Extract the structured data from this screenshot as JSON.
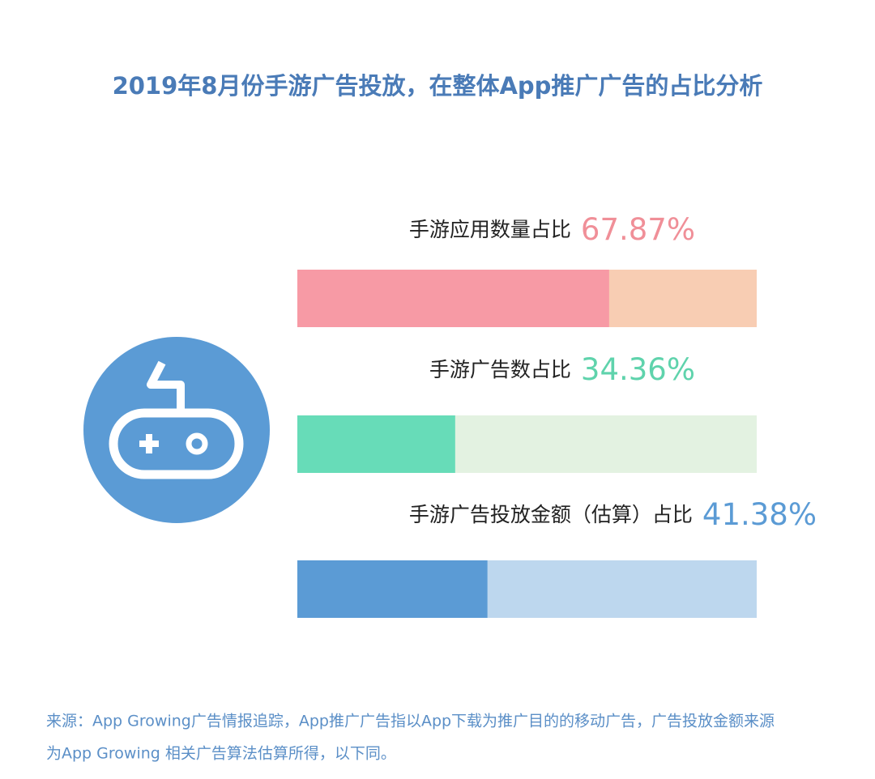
{
  "chart_data": {
    "type": "bar",
    "orientation": "horizontal",
    "title": "2019年8月份手游广告投放，在整体App推广广告的占比分析",
    "categories": [
      "手游应用数量占比",
      "手游广告数占比",
      "手游广告投放金额（估算）占比"
    ],
    "values": [
      67.87,
      34.36,
      41.38
    ],
    "value_labels": [
      "67.87%",
      "34.36%",
      "41.38%"
    ],
    "colors": [
      "#f79aa5",
      "#67dcb8",
      "#5b9bd5"
    ],
    "track_colors": [
      "#f8cdb3",
      "#e3f2e1",
      "#bdd7ee"
    ],
    "xlim": [
      0,
      100
    ],
    "source": [
      "来源：App Growing广告情报追踪，App推广广告指以App下载为推广目的的移动广告，广告投放金额来源",
      "为App Growing 相关广告算法估算所得，以下同。"
    ]
  }
}
